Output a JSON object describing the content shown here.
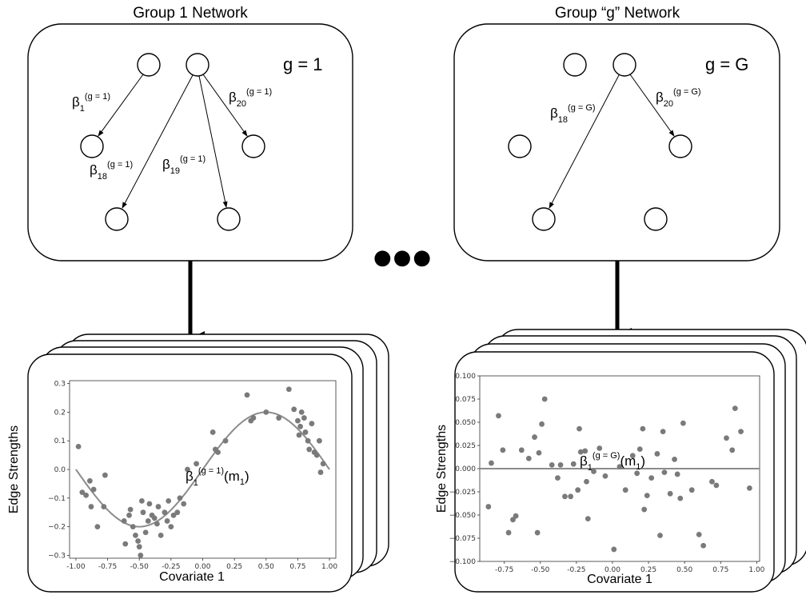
{
  "panels": [
    {
      "title": "Group 1 Network",
      "g_label": "g = 1",
      "edges": [
        {
          "b": "β",
          "sub": "1",
          "sup": "(g = 1)"
        },
        {
          "b": "β",
          "sub": "18",
          "sup": "(g = 1)"
        },
        {
          "b": "β",
          "sub": "19",
          "sup": "(g = 1)"
        },
        {
          "b": "β",
          "sub": "20",
          "sup": "(g = 1)"
        }
      ]
    },
    {
      "title": "Group “g” Network",
      "g_label": "g = G",
      "edges": [
        {
          "b": "β",
          "sub": "18",
          "sup": "(g = G)"
        },
        {
          "b": "β",
          "sub": "20",
          "sup": "(g = G)"
        }
      ]
    }
  ],
  "ellipsis": "●●●",
  "chart_data": [
    {
      "type": "scatter",
      "xlabel": "Covariate 1",
      "ylabel": "Edge Strengths",
      "annotation": {
        "b": "β",
        "sub": "1",
        "sup": "(g = 1)",
        "arg": "(m",
        "argsub": "1",
        "close": ")"
      },
      "xlim": [
        -1.05,
        1.05
      ],
      "ylim": [
        -0.31,
        0.31
      ],
      "xticks": [
        "-1.00",
        "-0.75",
        "-0.50",
        "-0.25",
        "0.00",
        "0.25",
        "0.50",
        "0.75",
        "1.00"
      ],
      "yticks": [
        "0.3",
        "0.2",
        "0.1",
        "0.0",
        "−0.1",
        "−0.2",
        "−0.3"
      ],
      "curve": "sine",
      "points": [
        [
          -0.98,
          0.08
        ],
        [
          -0.95,
          -0.08
        ],
        [
          -0.92,
          -0.09
        ],
        [
          -0.89,
          -0.04
        ],
        [
          -0.88,
          -0.13
        ],
        [
          -0.86,
          -0.07
        ],
        [
          -0.83,
          -0.2
        ],
        [
          -0.77,
          -0.02
        ],
        [
          -0.78,
          -0.13
        ],
        [
          -0.62,
          -0.18
        ],
        [
          -0.61,
          -0.26
        ],
        [
          -0.58,
          -0.16
        ],
        [
          -0.57,
          -0.14
        ],
        [
          -0.55,
          -0.2
        ],
        [
          -0.53,
          -0.23
        ],
        [
          -0.51,
          -0.25
        ],
        [
          -0.5,
          -0.27
        ],
        [
          -0.49,
          -0.3
        ],
        [
          -0.48,
          -0.11
        ],
        [
          -0.47,
          -0.15
        ],
        [
          -0.45,
          -0.22
        ],
        [
          -0.43,
          -0.18
        ],
        [
          -0.42,
          -0.12
        ],
        [
          -0.4,
          -0.16
        ],
        [
          -0.38,
          -0.17
        ],
        [
          -0.36,
          -0.19
        ],
        [
          -0.35,
          -0.13
        ],
        [
          -0.33,
          -0.23
        ],
        [
          -0.3,
          -0.15
        ],
        [
          -0.28,
          -0.18
        ],
        [
          -0.27,
          -0.11
        ],
        [
          -0.25,
          -0.2
        ],
        [
          -0.23,
          -0.16
        ],
        [
          -0.2,
          -0.15
        ],
        [
          -0.18,
          -0.1
        ],
        [
          -0.15,
          -0.12
        ],
        [
          -0.12,
          0.0
        ],
        [
          -0.05,
          0.02
        ],
        [
          0.08,
          0.13
        ],
        [
          0.1,
          0.07
        ],
        [
          0.12,
          0.06
        ],
        [
          0.18,
          0.1
        ],
        [
          0.35,
          0.26
        ],
        [
          0.38,
          0.17
        ],
        [
          0.4,
          0.18
        ],
        [
          0.5,
          0.2
        ],
        [
          0.6,
          0.18
        ],
        [
          0.68,
          0.28
        ],
        [
          0.72,
          0.21
        ],
        [
          0.75,
          0.17
        ],
        [
          0.76,
          0.12
        ],
        [
          0.77,
          0.15
        ],
        [
          0.78,
          0.2
        ],
        [
          0.8,
          0.18
        ],
        [
          0.81,
          0.13
        ],
        [
          0.83,
          0.1
        ],
        [
          0.84,
          0.07
        ],
        [
          0.86,
          0.16
        ],
        [
          0.88,
          0.06
        ],
        [
          0.9,
          0.05
        ],
        [
          0.92,
          0.1
        ],
        [
          0.93,
          -0.01
        ],
        [
          0.95,
          0.02
        ]
      ]
    },
    {
      "type": "scatter",
      "xlabel": "Covariate 1",
      "ylabel": "Edge Strengths",
      "annotation": {
        "b": "β",
        "sub": "1",
        "sup": "(g = G)",
        "arg": "(m",
        "argsub": "1",
        "close": ")"
      },
      "xlim": [
        -0.92,
        1.02
      ],
      "ylim": [
        -0.1,
        0.1
      ],
      "xticks": [
        "-0.75",
        "-0.50",
        "-0.25",
        "0.00",
        "0.25",
        "0.50",
        "0.75",
        "1.00"
      ],
      "yticks": [
        "0.100",
        "0.075",
        "0.050",
        "0.025",
        "0.000",
        "−0.025",
        "−0.050",
        "−0.075",
        "−0.100"
      ],
      "curve": "zero",
      "points": [
        [
          -0.86,
          -0.041
        ],
        [
          -0.84,
          0.006
        ],
        [
          -0.79,
          0.057
        ],
        [
          -0.76,
          0.02
        ],
        [
          -0.72,
          -0.069
        ],
        [
          -0.69,
          -0.055
        ],
        [
          -0.67,
          -0.051
        ],
        [
          -0.63,
          0.02
        ],
        [
          -0.58,
          0.011
        ],
        [
          -0.54,
          0.034
        ],
        [
          -0.52,
          -0.069
        ],
        [
          -0.51,
          0.017
        ],
        [
          -0.49,
          0.048
        ],
        [
          -0.47,
          0.075
        ],
        [
          -0.42,
          0.004
        ],
        [
          -0.38,
          -0.01
        ],
        [
          -0.36,
          0.004
        ],
        [
          -0.33,
          -0.03
        ],
        [
          -0.29,
          -0.03
        ],
        [
          -0.27,
          0.005
        ],
        [
          -0.24,
          -0.023
        ],
        [
          -0.23,
          0.043
        ],
        [
          -0.22,
          0.018
        ],
        [
          -0.19,
          0.019
        ],
        [
          -0.18,
          -0.014
        ],
        [
          -0.17,
          -0.054
        ],
        [
          -0.13,
          -0.003
        ],
        [
          -0.09,
          0.022
        ],
        [
          -0.05,
          -0.008
        ],
        [
          0.01,
          -0.087
        ],
        [
          0.05,
          0.002
        ],
        [
          0.09,
          -0.023
        ],
        [
          0.14,
          0.014
        ],
        [
          0.17,
          -0.005
        ],
        [
          0.19,
          0.021
        ],
        [
          0.21,
          0.043
        ],
        [
          0.22,
          -0.044
        ],
        [
          0.24,
          -0.029
        ],
        [
          0.27,
          -0.01
        ],
        [
          0.31,
          0.016
        ],
        [
          0.33,
          -0.072
        ],
        [
          0.35,
          0.04
        ],
        [
          0.36,
          -0.004
        ],
        [
          0.4,
          -0.027
        ],
        [
          0.43,
          0.01
        ],
        [
          0.45,
          -0.006
        ],
        [
          0.47,
          -0.032
        ],
        [
          0.49,
          0.049
        ],
        [
          0.55,
          -0.023
        ],
        [
          0.6,
          -0.071
        ],
        [
          0.63,
          -0.083
        ],
        [
          0.69,
          -0.014
        ],
        [
          0.72,
          -0.018
        ],
        [
          0.79,
          0.033
        ],
        [
          0.83,
          0.02
        ],
        [
          0.85,
          0.065
        ],
        [
          0.89,
          0.04
        ],
        [
          0.95,
          -0.021
        ]
      ]
    }
  ]
}
